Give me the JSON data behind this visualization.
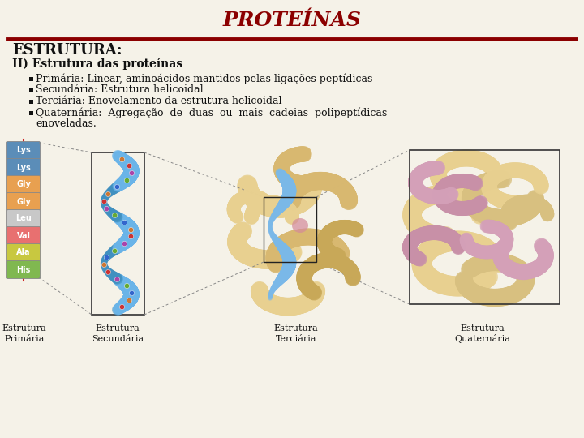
{
  "title": "PROTEÍNAS",
  "title_color": "#8B0000",
  "title_fontsize": 18,
  "separator_color": "#8B0000",
  "bg_color": "#f5f2e8",
  "section_header": "ESTRUTURA:",
  "section_header_fontsize": 13,
  "subsection": "II) Estrutura das proteínas",
  "subsection_fontsize": 10,
  "bullet_points": [
    "Primária: Linear, aminoácidos mantidos pelas ligações peptídicas",
    "Secundária: Estrutura helicoidal",
    "Terciária: Enovelamento da estrutura helicoidal",
    "Quaternária:  Agregação  de  duas  ou  mais  cadeias  polipeptídicas"
  ],
  "bullet5": "enoveladas.",
  "bullet_fontsize": 9,
  "image_labels": [
    [
      "Estrutura",
      "Primária"
    ],
    [
      "Estrutura",
      "Secundária"
    ],
    [
      "Estrutura",
      "Terciária"
    ],
    [
      "Estrutura",
      "Quaternária"
    ]
  ],
  "label_fontsize": 8,
  "amino_acids": [
    "Lys",
    "Lys",
    "Gly",
    "Gly",
    "Leu",
    "Val",
    "Ala",
    "His"
  ],
  "amino_colors": [
    "#5b8db8",
    "#5b8db8",
    "#e8a050",
    "#e8a050",
    "#c8c8c8",
    "#e87070",
    "#c8c840",
    "#80b850"
  ]
}
